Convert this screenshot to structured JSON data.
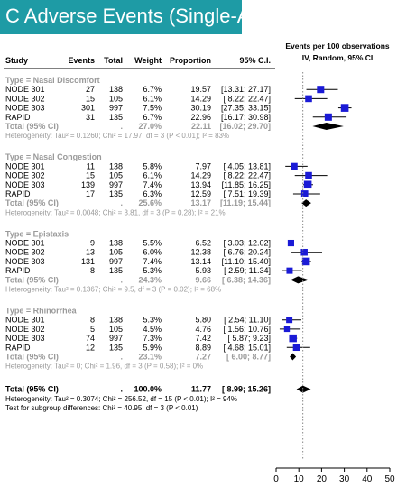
{
  "panel_title": "C Adverse Events (Single-Arm)",
  "colors": {
    "banner": "#1e9ba5",
    "square": "#1a1ad6",
    "diamond": "#000000",
    "group_text": "#9a9a9a",
    "reference_line": "#888888"
  },
  "chart_data": {
    "type": "forest",
    "headers": {
      "study": "Study",
      "events": "Events",
      "total": "Total",
      "weight": "Weight",
      "proportion": "Proportion",
      "ci": "95% C.I.",
      "plot_title_line1": "Events per 100 observations",
      "plot_title_line2": "IV, Random, 95% CI"
    },
    "x_axis": {
      "min": 0,
      "max": 50,
      "ticks": [
        "0",
        "10",
        "20",
        "30",
        "40",
        "50"
      ]
    },
    "reference_x": 11.77,
    "groups": [
      {
        "title": "Type = Nasal Discomfort",
        "studies": [
          {
            "study": "NODE 301",
            "events": "27",
            "total": "138",
            "weight": "6.7%",
            "proportion": 19.57,
            "ci_text": "[13.31; 27.17]",
            "lower": 13.31,
            "upper": 27.17
          },
          {
            "study": "NODE 302",
            "events": "15",
            "total": "105",
            "weight": "6.1%",
            "proportion": 14.29,
            "ci_text": "[ 8.22; 22.47]",
            "lower": 8.22,
            "upper": 22.47
          },
          {
            "study": "NODE 303",
            "events": "301",
            "total": "997",
            "weight": "7.5%",
            "proportion": 30.19,
            "ci_text": "[27.35; 33.15]",
            "lower": 27.35,
            "upper": 33.15
          },
          {
            "study": "RAPID",
            "events": "31",
            "total": "135",
            "weight": "6.7%",
            "proportion": 22.96,
            "ci_text": "[16.17; 30.98]",
            "lower": 16.17,
            "upper": 30.98
          }
        ],
        "total": {
          "label": "Total (95% CI)",
          "events": ".",
          "weight": "27.0%",
          "proportion": 22.11,
          "ci_text": "[16.02; 29.70]",
          "lower": 16.02,
          "upper": 29.7
        },
        "heterogeneity": "Heterogeneity: Tau² = 0.1260; Chi² = 17.97, df = 3 (P < 0.01); I² = 83%"
      },
      {
        "title": "Type = Nasal Congestion",
        "studies": [
          {
            "study": "NODE 301",
            "events": "11",
            "total": "138",
            "weight": "5.8%",
            "proportion": 7.97,
            "ci_text": "[ 4.05; 13.81]",
            "lower": 4.05,
            "upper": 13.81
          },
          {
            "study": "NODE 302",
            "events": "15",
            "total": "105",
            "weight": "6.1%",
            "proportion": 14.29,
            "ci_text": "[ 8.22; 22.47]",
            "lower": 8.22,
            "upper": 22.47
          },
          {
            "study": "NODE 303",
            "events": "139",
            "total": "997",
            "weight": "7.4%",
            "proportion": 13.94,
            "ci_text": "[11.85; 16.25]",
            "lower": 11.85,
            "upper": 16.25
          },
          {
            "study": "RAPID",
            "events": "17",
            "total": "135",
            "weight": "6.3%",
            "proportion": 12.59,
            "ci_text": "[ 7.51; 19.39]",
            "lower": 7.51,
            "upper": 19.39
          }
        ],
        "total": {
          "label": "Total (95% CI)",
          "events": ".",
          "weight": "25.6%",
          "proportion": 13.17,
          "ci_text": "[11.19; 15.44]",
          "lower": 11.19,
          "upper": 15.44
        },
        "heterogeneity": "Heterogeneity: Tau² = 0.0048; Chi² = 3.81, df = 3 (P = 0.28); I² = 21%"
      },
      {
        "title": "Type = Epistaxis",
        "studies": [
          {
            "study": "NODE 301",
            "events": "9",
            "total": "138",
            "weight": "5.5%",
            "proportion": 6.52,
            "ci_text": "[ 3.03; 12.02]",
            "lower": 3.03,
            "upper": 12.02
          },
          {
            "study": "NODE 302",
            "events": "13",
            "total": "105",
            "weight": "6.0%",
            "proportion": 12.38,
            "ci_text": "[ 6.76; 20.24]",
            "lower": 6.76,
            "upper": 20.24
          },
          {
            "study": "NODE 303",
            "events": "131",
            "total": "997",
            "weight": "7.4%",
            "proportion": 13.14,
            "ci_text": "[11.10; 15.40]",
            "lower": 11.1,
            "upper": 15.4
          },
          {
            "study": "RAPID",
            "events": "8",
            "total": "135",
            "weight": "5.3%",
            "proportion": 5.93,
            "ci_text": "[ 2.59; 11.34]",
            "lower": 2.59,
            "upper": 11.34
          }
        ],
        "total": {
          "label": "Total (95% CI)",
          "events": ".",
          "weight": "24.3%",
          "proportion": 9.66,
          "ci_text": "[ 6.38; 14.36]",
          "lower": 6.38,
          "upper": 14.36
        },
        "heterogeneity": "Heterogeneity: Tau² = 0.1367; Chi² = 9.5, df = 3 (P = 0.02); I² = 68%"
      },
      {
        "title": "Type = Rhinorrhea",
        "studies": [
          {
            "study": "NODE 301",
            "events": "8",
            "total": "138",
            "weight": "5.3%",
            "proportion": 5.8,
            "ci_text": "[ 2.54; 11.10]",
            "lower": 2.54,
            "upper": 11.1
          },
          {
            "study": "NODE 302",
            "events": "5",
            "total": "105",
            "weight": "4.5%",
            "proportion": 4.76,
            "ci_text": "[ 1.56; 10.76]",
            "lower": 1.56,
            "upper": 10.76
          },
          {
            "study": "NODE 303",
            "events": "74",
            "total": "997",
            "weight": "7.3%",
            "proportion": 7.42,
            "ci_text": "[ 5.87; 9.23]",
            "lower": 5.87,
            "upper": 9.23
          },
          {
            "study": "RAPID",
            "events": "12",
            "total": "135",
            "weight": "5.9%",
            "proportion": 8.89,
            "ci_text": "[ 4.68; 15.01]",
            "lower": 4.68,
            "upper": 15.01
          }
        ],
        "total": {
          "label": "Total (95% CI)",
          "events": ".",
          "weight": "23.1%",
          "proportion": 7.27,
          "ci_text": "[ 6.00; 8.77]",
          "lower": 6.0,
          "upper": 8.77
        },
        "heterogeneity": "Heterogeneity: Tau² = 0; Chi² = 1.96, df = 3 (P = 0.58); I² = 0%"
      }
    ],
    "overall": {
      "label": "Total (95% CI)",
      "events": ".",
      "weight": "100.0%",
      "proportion": 11.77,
      "ci_text": "[ 8.99; 15.26]",
      "lower": 8.99,
      "upper": 15.26,
      "heterogeneity": "Heterogeneity: Tau² = 0.3074; Chi² = 256.52, df = 15 (P < 0.01); I² = 94%",
      "subgroup_test": "Test for subgroup differences: Chi² = 40.95, df = 3 (P < 0.01)"
    }
  }
}
